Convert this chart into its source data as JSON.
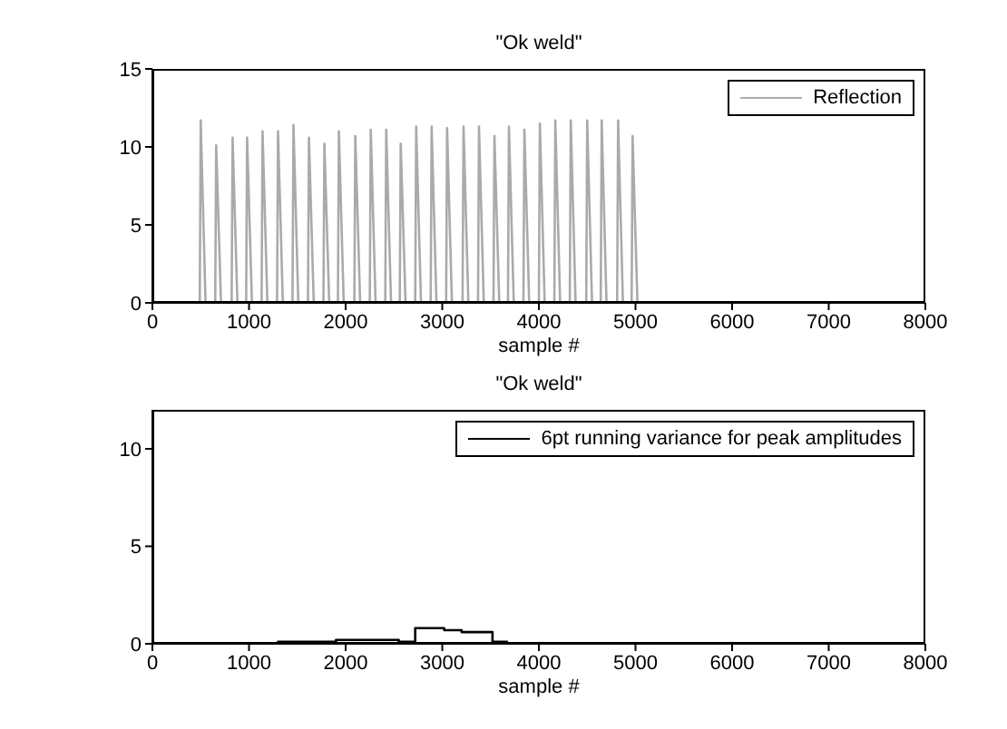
{
  "chart_data": [
    {
      "type": "line",
      "title": "\"Ok weld\"",
      "xlabel": "sample #",
      "xlim": [
        0,
        8000
      ],
      "xticks": [
        0,
        1000,
        2000,
        3000,
        4000,
        5000,
        6000,
        7000,
        8000
      ],
      "ylim": [
        0,
        15
      ],
      "yticks": [
        0,
        5,
        10,
        15
      ],
      "legend": "top right",
      "x": [
        0,
        490,
        500,
        550,
        650,
        660,
        710,
        820,
        830,
        880,
        970,
        980,
        1030,
        1130,
        1140,
        1190,
        1290,
        1300,
        1350,
        1450,
        1460,
        1510,
        1610,
        1620,
        1670,
        1770,
        1780,
        1830,
        1920,
        1930,
        1980,
        2090,
        2100,
        2150,
        2250,
        2260,
        2310,
        2410,
        2420,
        2470,
        2560,
        2570,
        2620,
        2720,
        2730,
        2780,
        2880,
        2890,
        2940,
        3040,
        3050,
        3100,
        3210,
        3220,
        3270,
        3370,
        3380,
        3430,
        3530,
        3540,
        3590,
        3680,
        3690,
        3740,
        3840,
        3850,
        3900,
        4000,
        4010,
        4060,
        4160,
        4170,
        4220,
        4320,
        4330,
        4380,
        4490,
        4500,
        4550,
        4640,
        4650,
        4700,
        4810,
        4820,
        4870,
        4960,
        4970,
        5020,
        7500
      ],
      "series": [
        {
          "name": "Reflection",
          "color": "#aaaaaa",
          "values": [
            0,
            0,
            11.7,
            0,
            0,
            10.1,
            0,
            0,
            10.6,
            0,
            0,
            10.6,
            0,
            0,
            11.0,
            0,
            0,
            11.0,
            0,
            0,
            11.4,
            0,
            0,
            10.6,
            0,
            0,
            10.2,
            0,
            0,
            11.0,
            0,
            0,
            10.7,
            0,
            0,
            11.1,
            0,
            0,
            11.1,
            0,
            0,
            10.2,
            0,
            0,
            11.3,
            0,
            0,
            11.3,
            0,
            0,
            11.2,
            0,
            0,
            11.3,
            0,
            0,
            11.3,
            0,
            0,
            10.7,
            0,
            0,
            11.3,
            0,
            0,
            11.1,
            0,
            0,
            11.5,
            0,
            0,
            11.7,
            0,
            0,
            11.7,
            0,
            0,
            11.7,
            0,
            0,
            11.7,
            0,
            0,
            11.7,
            0,
            0,
            10.7,
            0,
            0
          ]
        }
      ]
    },
    {
      "type": "step",
      "title": "\"Ok weld\"",
      "xlabel": "sample #",
      "xlim": [
        0,
        8000
      ],
      "xticks": [
        0,
        1000,
        2000,
        3000,
        4000,
        5000,
        6000,
        7000,
        8000
      ],
      "ylim": [
        0,
        12
      ],
      "yticks": [
        0,
        5,
        10
      ],
      "legend": "top right",
      "x": [
        0,
        1300,
        1900,
        2550,
        2720,
        3020,
        3200,
        3520,
        3670,
        7440
      ],
      "series": [
        {
          "name": "6pt running variance for peak amplitudes",
          "color": "#000000",
          "values": [
            0,
            0.1,
            0.2,
            0.1,
            0.8,
            0.7,
            0.6,
            0.1,
            0,
            0
          ]
        }
      ]
    }
  ]
}
